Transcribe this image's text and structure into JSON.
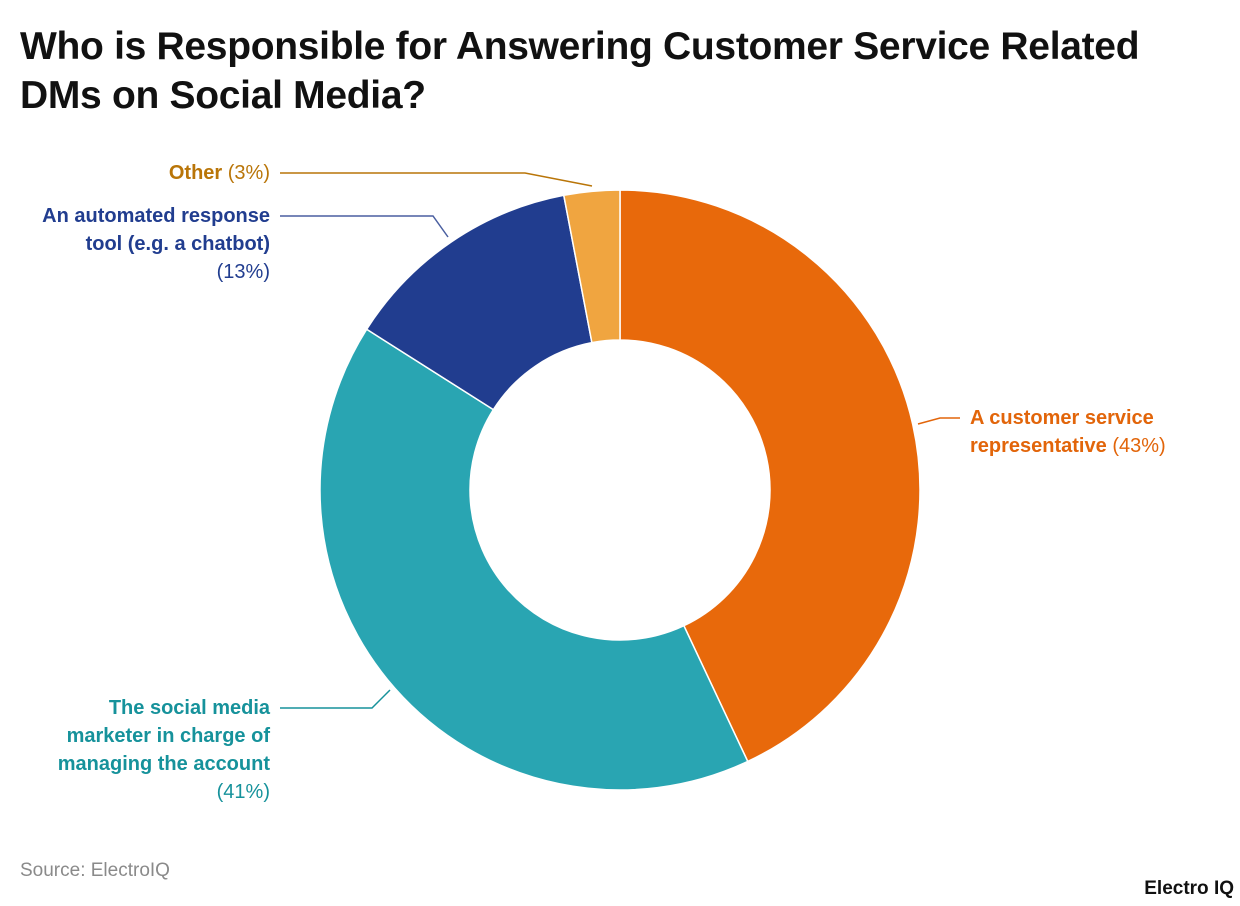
{
  "title": "Who is Responsible for Answering Customer Service Related DMs on Social Media?",
  "source": "Source: ElectroIQ",
  "logo": "Electro IQ",
  "chart_data": {
    "type": "pie",
    "donut": true,
    "title": "Who is Responsible for Answering Customer Service Related DMs on Social Media?",
    "slices": [
      {
        "label": "A customer service representative",
        "value": 43,
        "pct_label": "(43%)",
        "color": "#E8690B",
        "text_color": "#E2650A"
      },
      {
        "label": "The social media marketer in charge of managing the account",
        "value": 41,
        "pct_label": "(41%)",
        "color": "#29A5B2",
        "text_color": "#16929B"
      },
      {
        "label": "An automated response tool (e.g. a chatbot)",
        "value": 13,
        "pct_label": "(13%)",
        "color": "#213D8F",
        "text_color": "#213D8F"
      },
      {
        "label": "Other",
        "value": 3,
        "pct_label": "(3%)",
        "color": "#F0A540",
        "text_color": "#B97508"
      }
    ],
    "start": "top",
    "direction": "clockwise"
  }
}
